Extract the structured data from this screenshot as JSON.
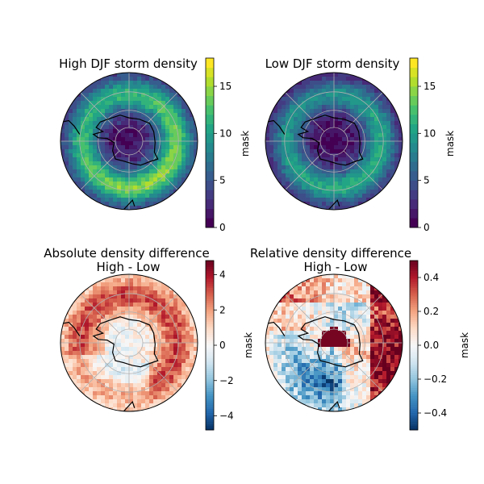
{
  "chart_data": [
    {
      "type": "heatmap",
      "projection": "south-polar-stereographic",
      "title": "High DJF storm density",
      "colormap": "viridis",
      "colorbar": {
        "label": "mask",
        "range": [
          0,
          18
        ],
        "levels": 18,
        "ticks": [
          "0",
          "5",
          "10",
          "15"
        ],
        "tick_values": [
          0,
          5,
          10,
          15
        ]
      },
      "field": {
        "center_value": 1,
        "ring_peak_value": 13,
        "ring_peak_lat": -55,
        "edge_value": 3
      },
      "gridlines": true
    },
    {
      "type": "heatmap",
      "projection": "south-polar-stereographic",
      "title": "Low DJF storm density",
      "colormap": "viridis",
      "colorbar": {
        "label": "mask",
        "range": [
          0,
          18
        ],
        "levels": 18,
        "ticks": [
          "0",
          "5",
          "10",
          "15"
        ],
        "tick_values": [
          0,
          5,
          10,
          15
        ]
      },
      "field": {
        "center_value": 0.5,
        "ring_peak_value": 10,
        "ring_peak_lat": -55,
        "edge_value": 2
      },
      "gridlines": true
    },
    {
      "type": "heatmap",
      "projection": "south-polar-stereographic",
      "title": "Absolute density difference",
      "subtitle": "High - Low",
      "colormap": "RdBu_r",
      "colorbar": {
        "label": "mask",
        "range": [
          -4.8,
          4.8
        ],
        "ticks": [
          "−4",
          "−2",
          "0",
          "2",
          "4"
        ],
        "tick_values": [
          -4,
          -2,
          0,
          2,
          4
        ]
      },
      "field": {
        "ring_mean": 2.5,
        "center_value": 0,
        "negative_sector": "south"
      },
      "gridlines": true
    },
    {
      "type": "heatmap",
      "projection": "south-polar-stereographic",
      "title": "Relative density difference",
      "subtitle": "High - Low",
      "colormap": "RdBu_r",
      "colorbar": {
        "label": "mask",
        "range": [
          -0.5,
          0.5
        ],
        "ticks": [
          "−0.4",
          "−0.2",
          "0.0",
          "0.2",
          "0.4"
        ],
        "tick_values": [
          -0.4,
          -0.2,
          0.0,
          0.2,
          0.4
        ]
      },
      "field": {
        "center_value": 0.5,
        "negative_sector": "southwest",
        "positive_sector": "east"
      },
      "gridlines": true
    }
  ],
  "colors": {
    "coastline": "#000000",
    "gridline": "#b0b0b0",
    "background": "#ffffff"
  }
}
